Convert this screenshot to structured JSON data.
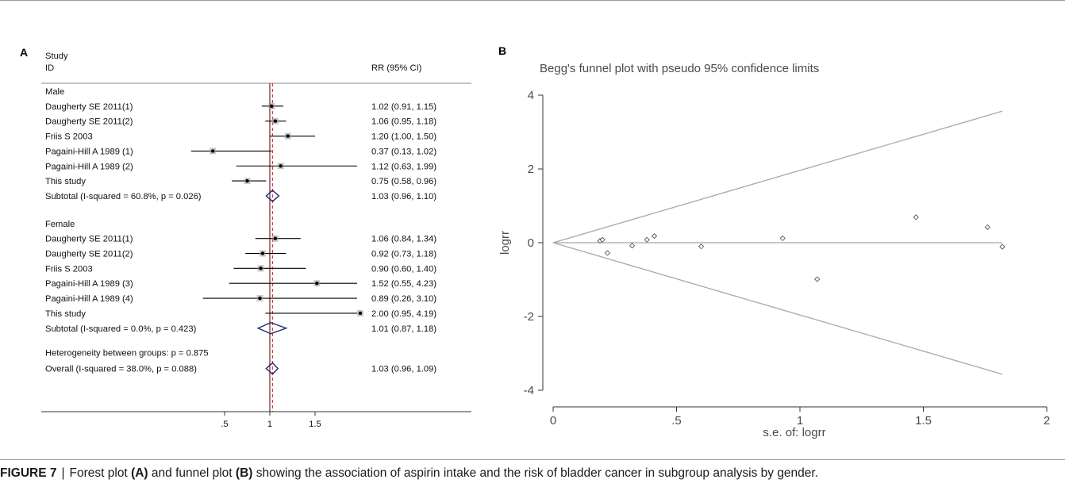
{
  "panel_a": {
    "letter": "A",
    "header_study": "Study",
    "header_id": "ID",
    "header_rr": "RR (95% CI)",
    "heterogeneity": "Heterogeneity between groups: p = 0.875"
  },
  "panel_b": {
    "letter": "B",
    "title": "Begg's funnel plot with pseudo 95% confidence limits"
  },
  "caption": {
    "figure_label": "FIGURE 7",
    "text_1": "Forest plot",
    "ref_a": "(A)",
    "text_2": "and funnel plot",
    "ref_b": "(B)",
    "text_3": "showing the association of aspirin intake and the risk of bladder cancer in subgroup analysis by gender."
  },
  "chart_data": [
    {
      "type": "forest",
      "title": "",
      "xlabel": "",
      "x_ticks": [
        ".5",
        "1",
        "1.5"
      ],
      "reference_line": 1,
      "overall_line": 1.03,
      "groups": [
        {
          "name": "Male",
          "studies": [
            {
              "label": "Daugherty SE 2011(1)",
              "rr": 1.02,
              "lo": 0.91,
              "hi": 1.15,
              "text": "1.02 (0.91, 1.15)"
            },
            {
              "label": "Daugherty SE 2011(2)",
              "rr": 1.06,
              "lo": 0.95,
              "hi": 1.18,
              "text": "1.06 (0.95, 1.18)"
            },
            {
              "label": "Friis S 2003",
              "rr": 1.2,
              "lo": 1.0,
              "hi": 1.5,
              "text": "1.20 (1.00, 1.50)"
            },
            {
              "label": "Pagaini-Hill A 1989 (1)",
              "rr": 0.37,
              "lo": 0.13,
              "hi": 1.02,
              "text": "0.37 (0.13, 1.02)"
            },
            {
              "label": "Pagaini-Hill A 1989 (2)",
              "rr": 1.12,
              "lo": 0.63,
              "hi": 1.99,
              "text": "1.12 (0.63, 1.99)"
            },
            {
              "label": "This study",
              "rr": 0.75,
              "lo": 0.58,
              "hi": 0.96,
              "text": "0.75 (0.58, 0.96)"
            }
          ],
          "subtotal": {
            "label": "Subtotal  (I-squared = 60.8%, p = 0.026)",
            "rr": 1.03,
            "lo": 0.96,
            "hi": 1.1,
            "text": "1.03 (0.96, 1.10)"
          }
        },
        {
          "name": "Female",
          "studies": [
            {
              "label": "Daugherty SE 2011(1)",
              "rr": 1.06,
              "lo": 0.84,
              "hi": 1.34,
              "text": "1.06 (0.84, 1.34)"
            },
            {
              "label": "Daugherty SE 2011(2)",
              "rr": 0.92,
              "lo": 0.73,
              "hi": 1.18,
              "text": "0.92 (0.73, 1.18)"
            },
            {
              "label": "Friis S 2003",
              "rr": 0.9,
              "lo": 0.6,
              "hi": 1.4,
              "text": "0.90 (0.60, 1.40)"
            },
            {
              "label": "Pagaini-Hill A 1989 (3)",
              "rr": 1.52,
              "lo": 0.55,
              "hi": 4.23,
              "text": "1.52 (0.55, 4.23)"
            },
            {
              "label": "Pagaini-Hill A 1989 (4)",
              "rr": 0.89,
              "lo": 0.26,
              "hi": 3.1,
              "text": "0.89 (0.26, 3.10)"
            },
            {
              "label": "This study",
              "rr": 2.0,
              "lo": 0.95,
              "hi": 4.19,
              "text": "2.00 (0.95, 4.19)"
            }
          ],
          "subtotal": {
            "label": "Subtotal  (I-squared = 0.0%, p = 0.423)",
            "rr": 1.01,
            "lo": 0.87,
            "hi": 1.18,
            "text": "1.01 (0.87, 1.18)"
          }
        }
      ],
      "overall": {
        "label": "Overall  (I-squared = 38.0%, p = 0.088)",
        "rr": 1.03,
        "lo": 0.96,
        "hi": 1.09,
        "text": "1.03 (0.96, 1.09)"
      },
      "colors": {
        "reference": "#7a1f1f",
        "overall": "#d23b3b",
        "diamond": "#1c2a78"
      }
    },
    {
      "type": "scatter",
      "title": "Begg's funnel plot with pseudo 95% confidence limits",
      "xlabel": "s.e. of: logrr",
      "ylabel": "logrr",
      "xlim": [
        0,
        2
      ],
      "ylim": [
        -4,
        4
      ],
      "x_ticks": [
        "0",
        ".5",
        "1",
        "1.5",
        "2"
      ],
      "y_ticks": [
        "-4",
        "-2",
        "0",
        "2",
        "4"
      ],
      "pooled_estimate": 0,
      "limit_slope": 1.96,
      "limit_x_max": 1.82,
      "points": [
        {
          "x": 0.19,
          "y": 0.05
        },
        {
          "x": 0.2,
          "y": 0.08
        },
        {
          "x": 0.22,
          "y": -0.28
        },
        {
          "x": 0.32,
          "y": -0.08
        },
        {
          "x": 0.38,
          "y": 0.08
        },
        {
          "x": 0.41,
          "y": 0.18
        },
        {
          "x": 0.6,
          "y": -0.1
        },
        {
          "x": 0.93,
          "y": 0.12
        },
        {
          "x": 1.07,
          "y": -0.99
        },
        {
          "x": 1.47,
          "y": 0.69
        },
        {
          "x": 1.76,
          "y": 0.42
        },
        {
          "x": 1.82,
          "y": -0.11
        }
      ],
      "colors": {
        "lines": "#a8a8a8",
        "points": "#555555",
        "axis": "#333333"
      }
    }
  ]
}
